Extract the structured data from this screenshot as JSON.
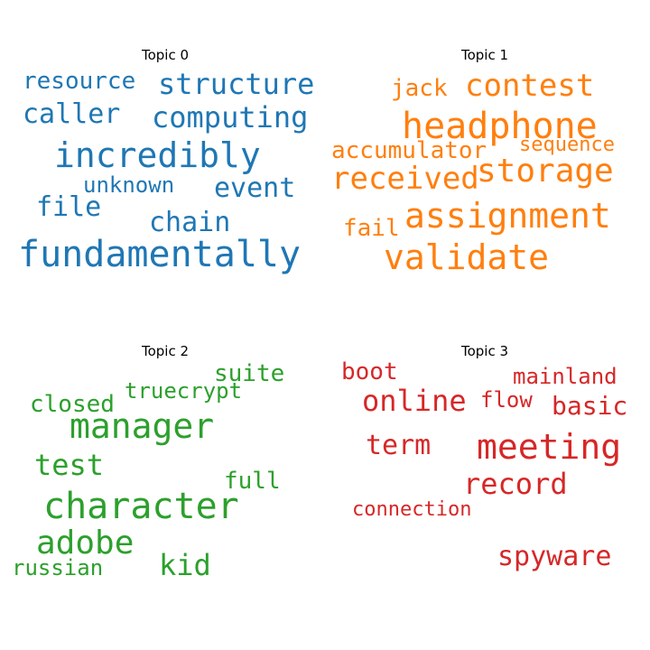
{
  "chart_data": [
    {
      "type": "wordcloud",
      "title": "Topic 0",
      "color": "#1f77b4",
      "words": [
        {
          "text": "resource",
          "size": 26
        },
        {
          "text": "structure",
          "size": 32
        },
        {
          "text": "caller",
          "size": 30
        },
        {
          "text": "computing",
          "size": 32
        },
        {
          "text": "incredibly",
          "size": 38
        },
        {
          "text": "unknown",
          "size": 24
        },
        {
          "text": "event",
          "size": 30
        },
        {
          "text": "file",
          "size": 30
        },
        {
          "text": "chain",
          "size": 30
        },
        {
          "text": "fundamentally",
          "size": 40
        }
      ]
    },
    {
      "type": "wordcloud",
      "title": "Topic 1",
      "color": "#ff7f0e",
      "words": [
        {
          "text": "jack",
          "size": 26
        },
        {
          "text": "contest",
          "size": 34
        },
        {
          "text": "headphone",
          "size": 40
        },
        {
          "text": "accumulator",
          "size": 26
        },
        {
          "text": "sequence",
          "size": 22
        },
        {
          "text": "received",
          "size": 34
        },
        {
          "text": "storage",
          "size": 36
        },
        {
          "text": "fail",
          "size": 26
        },
        {
          "text": "assignment",
          "size": 38
        },
        {
          "text": "validate",
          "size": 38
        }
      ]
    },
    {
      "type": "wordcloud",
      "title": "Topic 2",
      "color": "#2ca02c",
      "words": [
        {
          "text": "suite",
          "size": 26
        },
        {
          "text": "truecrypt",
          "size": 24
        },
        {
          "text": "closed",
          "size": 26
        },
        {
          "text": "manager",
          "size": 38
        },
        {
          "text": "test",
          "size": 32
        },
        {
          "text": "full",
          "size": 26
        },
        {
          "text": "character",
          "size": 40
        },
        {
          "text": "adobe",
          "size": 36
        },
        {
          "text": "kid",
          "size": 32
        },
        {
          "text": "russian",
          "size": 24
        }
      ]
    },
    {
      "type": "wordcloud",
      "title": "Topic 3",
      "color": "#d62728",
      "words": [
        {
          "text": "boot",
          "size": 26
        },
        {
          "text": "mainland",
          "size": 24
        },
        {
          "text": "online",
          "size": 32
        },
        {
          "text": "flow",
          "size": 24
        },
        {
          "text": "basic",
          "size": 28
        },
        {
          "text": "term",
          "size": 30
        },
        {
          "text": "meeting",
          "size": 38
        },
        {
          "text": "record",
          "size": 32
        },
        {
          "text": "connection",
          "size": 22
        },
        {
          "text": "spyware",
          "size": 30
        }
      ]
    }
  ]
}
